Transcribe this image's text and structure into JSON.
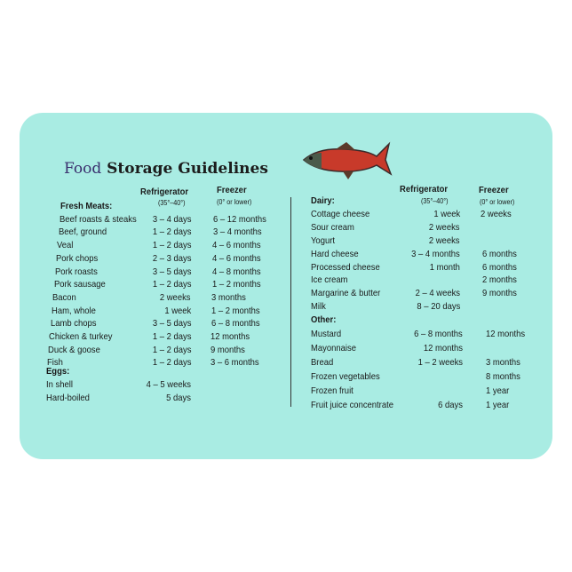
{
  "title_first": "Food",
  "title_rest": "Storage Guidelines",
  "left": {
    "col_fridge": "Refrigerator",
    "col_fridge_sub": "(35°–40°)",
    "col_freezer": "Freezer",
    "col_freezer_sub": "(0° or lower)",
    "sections": [
      {
        "heading": "Fresh Meats:",
        "items": [
          {
            "name": "Beef roasts & steaks",
            "fridge": "3 – 4 days",
            "freezer": "6 – 12 months"
          },
          {
            "name": "Beef, ground",
            "fridge": "1 – 2 days",
            "freezer": "3 – 4 months"
          },
          {
            "name": "Veal",
            "fridge": "1 – 2 days",
            "freezer": "4 – 6 months"
          },
          {
            "name": "Pork chops",
            "fridge": "2 – 3 days",
            "freezer": "4 – 6 months"
          },
          {
            "name": "Pork roasts",
            "fridge": "3 – 5 days",
            "freezer": "4 – 8 months"
          },
          {
            "name": "Pork sausage",
            "fridge": "1 – 2 days",
            "freezer": "1 – 2 months"
          },
          {
            "name": "Bacon",
            "fridge": "2 weeks",
            "freezer": "3 months"
          },
          {
            "name": "Ham, whole",
            "fridge": "1 week",
            "freezer": "1 – 2 months"
          },
          {
            "name": "Lamb chops",
            "fridge": "3 – 5 days",
            "freezer": "6 – 8 months"
          },
          {
            "name": "Chicken & turkey",
            "fridge": "1 – 2 days",
            "freezer": "12 months"
          },
          {
            "name": "Duck & goose",
            "fridge": "1 – 2 days",
            "freezer": "9 months"
          },
          {
            "name": "Fish",
            "fridge": "1 – 2 days",
            "freezer": "3 – 6 months"
          }
        ]
      },
      {
        "heading": "Eggs:",
        "items": [
          {
            "name": "In shell",
            "fridge": "4 – 5 weeks",
            "freezer": ""
          },
          {
            "name": "Hard-boiled",
            "fridge": "5 days",
            "freezer": ""
          }
        ]
      }
    ]
  },
  "right": {
    "col_fridge": "Refrigerator",
    "col_fridge_sub": "(35°–40°)",
    "col_freezer": "Freezer",
    "col_freezer_sub": "(0° or lower)",
    "sections": [
      {
        "heading": "Dairy:",
        "items": [
          {
            "name": "Cottage cheese",
            "fridge": "1 week",
            "freezer": "2 weeks"
          },
          {
            "name": "Sour cream",
            "fridge": "2 weeks",
            "freezer": ""
          },
          {
            "name": "Yogurt",
            "fridge": "2 weeks",
            "freezer": ""
          },
          {
            "name": "Hard cheese",
            "fridge": "3 – 4 months",
            "freezer": "6 months"
          },
          {
            "name": "Processed cheese",
            "fridge": "1 month",
            "freezer": "6 months"
          },
          {
            "name": "Ice cream",
            "fridge": "",
            "freezer": "2 months"
          },
          {
            "name": "Margarine & butter",
            "fridge": "2 – 4 weeks",
            "freezer": "9 months"
          },
          {
            "name": "Milk",
            "fridge": "8 – 20 days",
            "freezer": ""
          }
        ]
      },
      {
        "heading": "Other:",
        "items": [
          {
            "name": "Mustard",
            "fridge": "6 – 8 months",
            "freezer": "12 months"
          },
          {
            "name": "Mayonnaise",
            "fridge": "12 months",
            "freezer": ""
          },
          {
            "name": "Bread",
            "fridge": "1 – 2 weeks",
            "freezer": "3 months"
          },
          {
            "name": "Frozen vegetables",
            "fridge": "",
            "freezer": "8 months"
          },
          {
            "name": "Frozen fruit",
            "fridge": "",
            "freezer": "1 year"
          },
          {
            "name": "Fruit juice concentrate",
            "fridge": "6 days",
            "freezer": "1 year"
          }
        ]
      }
    ]
  },
  "colors": {
    "card": "#a9ece3",
    "fish": "#c83a2a"
  }
}
